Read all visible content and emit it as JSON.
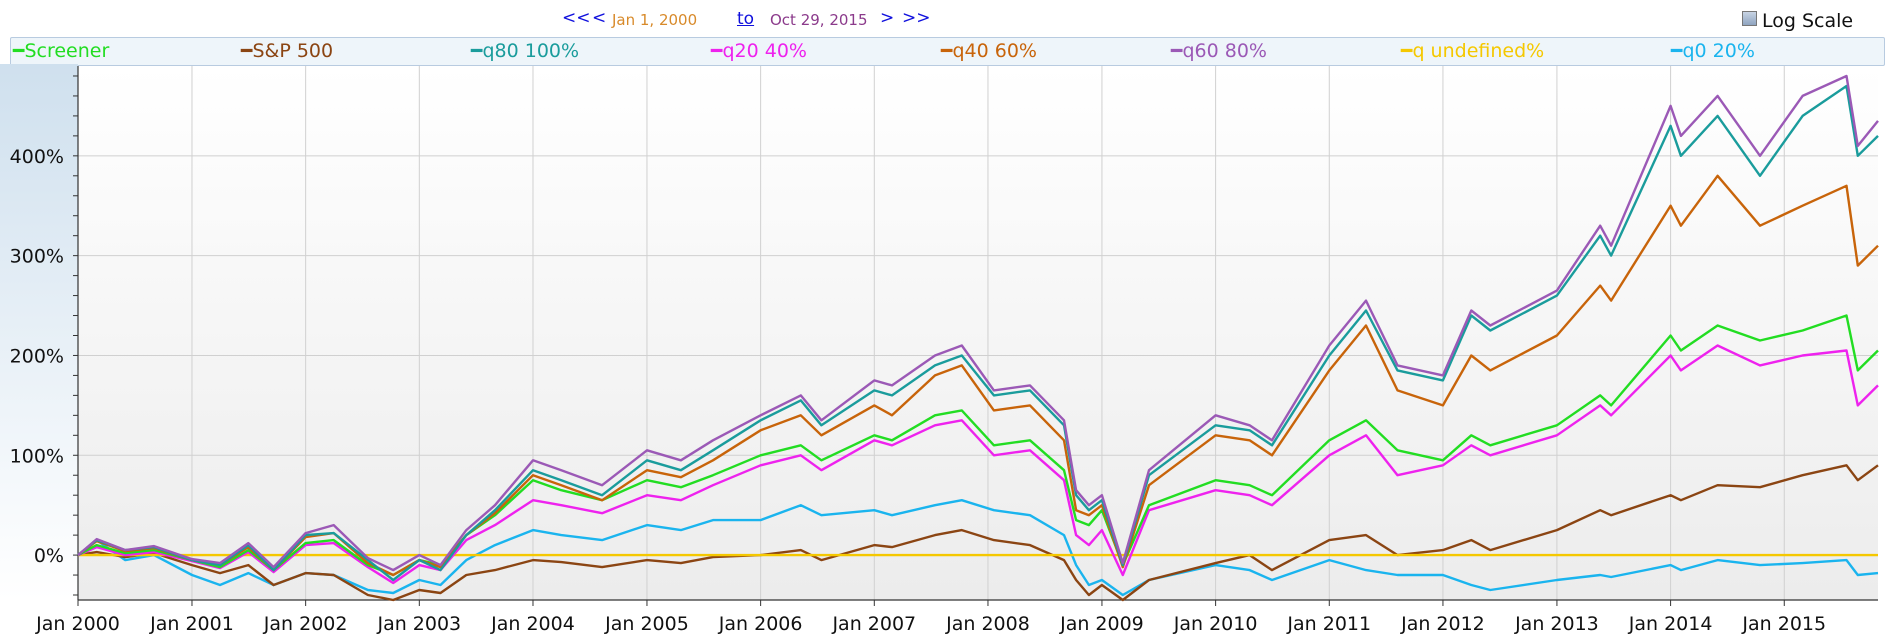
{
  "nav": {
    "first": "<<",
    "prev": "<",
    "start_date": "Jan 1, 2000",
    "to": "to",
    "end_date": "Oct 29, 2015",
    "next": ">",
    "last": ">>"
  },
  "log_scale": {
    "label": "Log Scale",
    "checked": false
  },
  "colors": {
    "Screener": "#22dd22",
    "S&P 500": "#8b4513",
    "q80 100%": "#1a9c9c",
    "q20 40%": "#ee22ee",
    "q40 60%": "#c8640a",
    "q60 80%": "#9b59b6",
    "q undefined%": "#f5c800",
    "q0 20%": "#1ab4ee",
    "grid": "#d0d0d0",
    "axis": "#333333"
  },
  "chart_data": {
    "type": "line",
    "title": "",
    "xlabel": "",
    "ylabel": "",
    "xlim": [
      "2000-01-01",
      "2015-10-29"
    ],
    "ylim": [
      -45,
      490
    ],
    "x_ticks": [
      "Jan 2000",
      "Jan 2001",
      "Jan 2002",
      "Jan 2003",
      "Jan 2004",
      "Jan 2005",
      "Jan 2006",
      "Jan 2007",
      "Jan 2008",
      "Jan 2009",
      "Jan 2010",
      "Jan 2011",
      "Jan 2012",
      "Jan 2013",
      "Jan 2014",
      "Jan 2015"
    ],
    "y_ticks": [
      {
        "v": 0,
        "label": "0%"
      },
      {
        "v": 100,
        "label": "100%"
      },
      {
        "v": 200,
        "label": "200%"
      },
      {
        "v": 300,
        "label": "300%"
      },
      {
        "v": 400,
        "label": "400%"
      }
    ],
    "grid": true,
    "legend_position": "top",
    "x": [
      "2000-01-01",
      "2000-03-01",
      "2000-06-01",
      "2000-09-01",
      "2001-01-01",
      "2001-04-01",
      "2001-07-01",
      "2001-09-20",
      "2002-01-01",
      "2002-04-01",
      "2002-07-20",
      "2002-10-09",
      "2003-01-01",
      "2003-03-10",
      "2003-06-01",
      "2003-09-01",
      "2004-01-01",
      "2004-04-01",
      "2004-08-10",
      "2005-01-01",
      "2005-04-20",
      "2005-08-01",
      "2006-01-01",
      "2006-05-10",
      "2006-07-15",
      "2007-01-01",
      "2007-02-27",
      "2007-07-15",
      "2007-10-09",
      "2008-01-20",
      "2008-05-15",
      "2008-09-01",
      "2008-10-10",
      "2008-11-20",
      "2009-01-01",
      "2009-03-09",
      "2009-06-01",
      "2010-01-01",
      "2010-04-20",
      "2010-07-01",
      "2011-01-01",
      "2011-04-29",
      "2011-08-08",
      "2012-01-01",
      "2012-04-01",
      "2012-06-01",
      "2013-01-01",
      "2013-05-20",
      "2013-06-24",
      "2014-01-01",
      "2014-02-03",
      "2014-06-01",
      "2014-10-15",
      "2015-03-01",
      "2015-07-20",
      "2015-08-25",
      "2015-10-29"
    ],
    "series": [
      {
        "name": "Screener",
        "values": [
          0,
          10,
          2,
          5,
          -5,
          -12,
          5,
          -15,
          12,
          15,
          -10,
          -20,
          -5,
          -10,
          20,
          40,
          75,
          65,
          55,
          75,
          68,
          80,
          100,
          110,
          95,
          120,
          115,
          140,
          145,
          110,
          115,
          85,
          35,
          30,
          45,
          -10,
          50,
          75,
          70,
          60,
          115,
          135,
          105,
          95,
          120,
          110,
          130,
          160,
          150,
          220,
          205,
          230,
          215,
          225,
          240,
          185,
          205
        ]
      },
      {
        "name": "S&P 500",
        "values": [
          0,
          3,
          -2,
          2,
          -10,
          -18,
          -10,
          -30,
          -18,
          -20,
          -40,
          -45,
          -35,
          -38,
          -20,
          -15,
          -5,
          -7,
          -12,
          -5,
          -8,
          -2,
          0,
          5,
          -5,
          10,
          8,
          20,
          25,
          15,
          10,
          -5,
          -25,
          -40,
          -30,
          -45,
          -25,
          -8,
          0,
          -15,
          15,
          20,
          0,
          5,
          15,
          5,
          25,
          45,
          40,
          60,
          55,
          70,
          68,
          80,
          90,
          75,
          90
        ]
      },
      {
        "name": "q80 100%",
        "values": [
          0,
          15,
          5,
          8,
          -5,
          -10,
          10,
          -15,
          20,
          22,
          -5,
          -25,
          -5,
          -15,
          20,
          45,
          85,
          75,
          60,
          95,
          85,
          105,
          135,
          155,
          130,
          165,
          160,
          190,
          200,
          160,
          165,
          130,
          60,
          45,
          55,
          -10,
          80,
          130,
          125,
          110,
          200,
          245,
          185,
          175,
          240,
          225,
          260,
          320,
          300,
          430,
          400,
          440,
          380,
          440,
          470,
          400,
          420
        ]
      },
      {
        "name": "q20 40%",
        "values": [
          0,
          8,
          0,
          3,
          -6,
          -13,
          3,
          -17,
          10,
          12,
          -12,
          -28,
          -10,
          -15,
          15,
          30,
          55,
          50,
          42,
          60,
          55,
          70,
          90,
          100,
          85,
          115,
          110,
          130,
          135,
          100,
          105,
          75,
          20,
          10,
          25,
          -20,
          45,
          65,
          60,
          50,
          100,
          120,
          80,
          90,
          110,
          100,
          120,
          150,
          140,
          200,
          185,
          210,
          190,
          200,
          205,
          150,
          170
        ]
      },
      {
        "name": "q40 60%",
        "values": [
          0,
          14,
          4,
          7,
          -5,
          -10,
          8,
          -15,
          18,
          22,
          -8,
          -20,
          -5,
          -12,
          20,
          42,
          80,
          70,
          55,
          85,
          78,
          95,
          125,
          140,
          120,
          150,
          140,
          180,
          190,
          145,
          150,
          115,
          45,
          40,
          50,
          -12,
          70,
          120,
          115,
          100,
          185,
          230,
          165,
          150,
          200,
          185,
          220,
          270,
          255,
          350,
          330,
          380,
          330,
          350,
          370,
          290,
          310
        ]
      },
      {
        "name": "q60 80%",
        "values": [
          0,
          16,
          5,
          9,
          -4,
          -8,
          12,
          -12,
          22,
          30,
          -3,
          -15,
          0,
          -10,
          25,
          50,
          95,
          85,
          70,
          105,
          95,
          115,
          140,
          160,
          135,
          175,
          170,
          200,
          210,
          165,
          170,
          135,
          65,
          50,
          60,
          -8,
          85,
          140,
          130,
          115,
          210,
          255,
          190,
          180,
          245,
          230,
          265,
          330,
          310,
          450,
          420,
          460,
          400,
          460,
          480,
          410,
          435
        ]
      },
      {
        "name": "q undefined%",
        "values": [
          0,
          0,
          0,
          0,
          0,
          0,
          0,
          0,
          0,
          0,
          0,
          0,
          0,
          0,
          0,
          0,
          0,
          0,
          0,
          0,
          0,
          0,
          0,
          0,
          0,
          0,
          0,
          0,
          0,
          0,
          0,
          0,
          0,
          0,
          0,
          0,
          0,
          0,
          0,
          0,
          0,
          0,
          0,
          0,
          0,
          0,
          0,
          0,
          0,
          0,
          0,
          0,
          0,
          0,
          0,
          0,
          0
        ]
      },
      {
        "name": "q0 20%",
        "values": [
          0,
          15,
          -5,
          0,
          -20,
          -30,
          -18,
          -30,
          -18,
          -20,
          -35,
          -38,
          -25,
          -30,
          -5,
          10,
          25,
          20,
          15,
          30,
          25,
          35,
          35,
          50,
          40,
          45,
          40,
          50,
          55,
          45,
          40,
          20,
          -10,
          -30,
          -25,
          -40,
          -25,
          -10,
          -15,
          -25,
          -5,
          -15,
          -20,
          -20,
          -30,
          -35,
          -25,
          -20,
          -22,
          -10,
          -15,
          -5,
          -10,
          -8,
          -5,
          -20,
          -18
        ]
      }
    ]
  }
}
